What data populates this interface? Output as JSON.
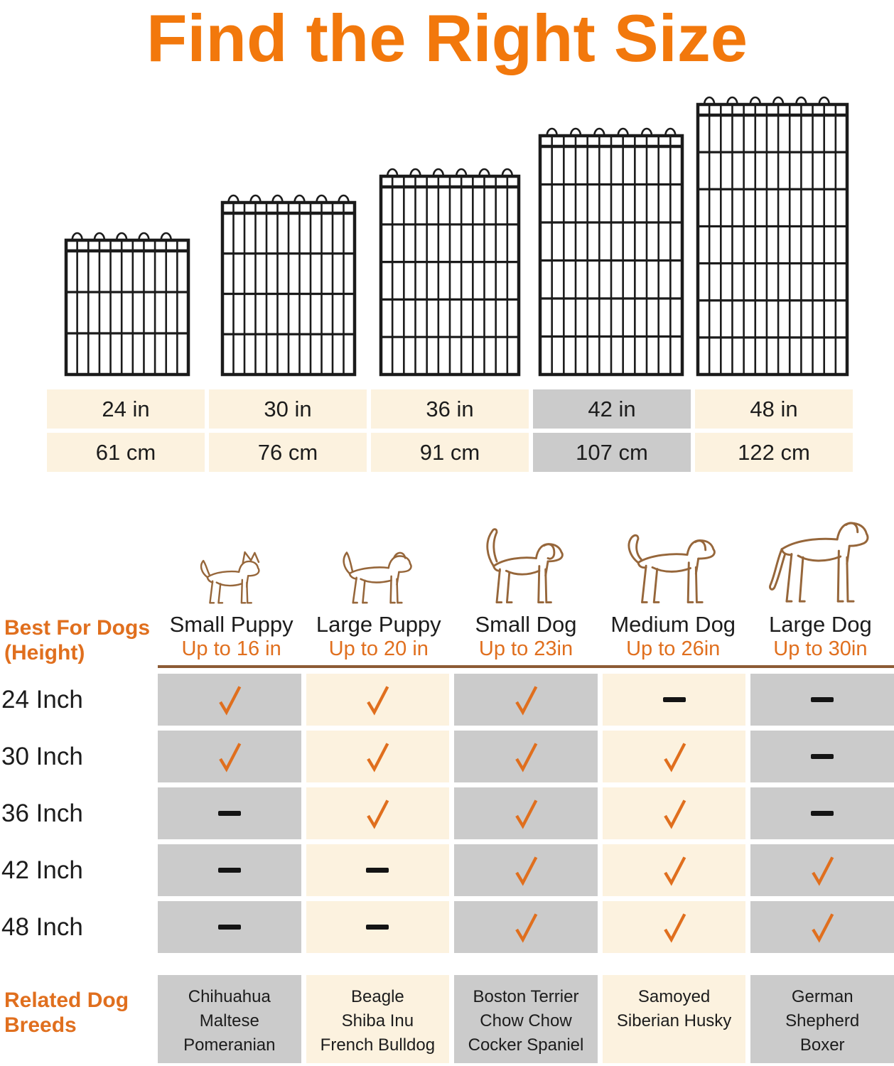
{
  "title": "Find the Right Size",
  "colors": {
    "title_orange": "#F2780C",
    "orange": "#E06F1E",
    "gray_cell": "#CBCBCB",
    "cream_cell": "#FCF2DF",
    "brown_rule": "#8C5B35",
    "dog_outline": "#96663A",
    "wire_black": "#1b1b1b",
    "dash_black": "#141414",
    "text_black": "#1c1c1c"
  },
  "panels": [
    {
      "name": "wire-panel-24in",
      "size_label": "24 in"
    },
    {
      "name": "wire-panel-30in",
      "size_label": "30 in"
    },
    {
      "name": "wire-panel-36in",
      "size_label": "36 in"
    },
    {
      "name": "wire-panel-42in",
      "size_label": "42 in"
    },
    {
      "name": "wire-panel-48in",
      "size_label": "48 in"
    }
  ],
  "size_table": {
    "columns": [
      {
        "inches": "24 in",
        "cm": "61 cm",
        "highlighted": false
      },
      {
        "inches": "30 in",
        "cm": "76 cm",
        "highlighted": false
      },
      {
        "inches": "36 in",
        "cm": "91 cm",
        "highlighted": false
      },
      {
        "inches": "42 in",
        "cm": "107 cm",
        "highlighted": true
      },
      {
        "inches": "48 in",
        "cm": "122 cm",
        "highlighted": false
      }
    ]
  },
  "dog_types": [
    {
      "name": "Small Puppy",
      "height": "Up to 16 in",
      "icon": "small-puppy-chihuahua-outline-icon"
    },
    {
      "name": "Large Puppy",
      "height": "Up to 20 in",
      "icon": "large-puppy-terrier-outline-icon"
    },
    {
      "name": "Small Dog",
      "height": "Up to 23in",
      "icon": "small-dog-beagle-outline-icon"
    },
    {
      "name": "Medium Dog",
      "height": "Up to 26in",
      "icon": "medium-dog-labrador-outline-icon"
    },
    {
      "name": "Large Dog",
      "height": "Up to 30in",
      "icon": "large-dog-shepherd-outline-icon"
    }
  ],
  "left_labels": {
    "best_for_line1": "Best For Dogs",
    "best_for_line2": "(Height)",
    "breeds_line1": "Related Dog",
    "breeds_line2": "Breeds"
  },
  "chart_data": {
    "type": "table",
    "title": "Find the Right Size",
    "row_labels": [
      "24 Inch",
      "30 Inch",
      "36 Inch",
      "42 Inch",
      "48 Inch"
    ],
    "column_labels": [
      "Small Puppy",
      "Large Puppy",
      "Small Dog",
      "Medium Dog",
      "Large Dog"
    ],
    "cells": [
      [
        "check",
        "check",
        "check",
        "dash",
        "dash"
      ],
      [
        "check",
        "check",
        "check",
        "check",
        "dash"
      ],
      [
        "dash",
        "check",
        "check",
        "check",
        "dash"
      ],
      [
        "dash",
        "dash",
        "check",
        "check",
        "check"
      ],
      [
        "dash",
        "dash",
        "check",
        "check",
        "check"
      ]
    ]
  },
  "matrix": {
    "rows": [
      {
        "label": "24 Inch",
        "cells": [
          "check",
          "check",
          "check",
          "dash",
          "dash"
        ]
      },
      {
        "label": "30 Inch",
        "cells": [
          "check",
          "check",
          "check",
          "check",
          "dash"
        ]
      },
      {
        "label": "36 Inch",
        "cells": [
          "dash",
          "check",
          "check",
          "check",
          "dash"
        ]
      },
      {
        "label": "42 Inch",
        "cells": [
          "dash",
          "dash",
          "check",
          "check",
          "check"
        ]
      },
      {
        "label": "48 Inch",
        "cells": [
          "dash",
          "dash",
          "check",
          "check",
          "check"
        ]
      }
    ]
  },
  "breeds": [
    [
      "Chihuahua",
      "Maltese",
      "Pomeranian"
    ],
    [
      "Beagle",
      "Shiba Inu",
      "French Bulldog"
    ],
    [
      "Boston Terrier",
      "Chow Chow",
      "Cocker Spaniel"
    ],
    [
      "Samoyed",
      "Siberian Husky"
    ],
    [
      "German",
      "Shepherd",
      "Boxer"
    ]
  ]
}
